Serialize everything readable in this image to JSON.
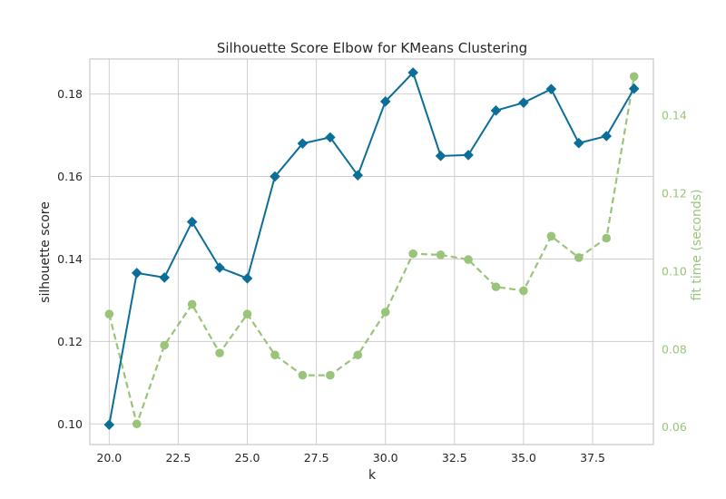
{
  "chart_data": {
    "type": "line",
    "title": "Silhouette Score Elbow for KMeans Clustering",
    "xlabel": "k",
    "ylabel": "silhouette score",
    "y2label": "fit time (seconds)",
    "xlim": [
      19.3,
      39.7
    ],
    "ylim": [
      0.095,
      0.1885
    ],
    "y2lim": [
      0.0555,
      0.1545
    ],
    "xticks": [
      20.0,
      22.5,
      25.0,
      27.5,
      30.0,
      32.5,
      35.0,
      37.5
    ],
    "xtick_labels": [
      "20.0",
      "22.5",
      "25.0",
      "27.5",
      "30.0",
      "32.5",
      "35.0",
      "37.5"
    ],
    "yticks": [
      0.1,
      0.12,
      0.14,
      0.16,
      0.18
    ],
    "ytick_labels": [
      "0.10",
      "0.12",
      "0.14",
      "0.16",
      "0.18"
    ],
    "y2ticks": [
      0.06,
      0.08,
      0.1,
      0.12,
      0.14
    ],
    "y2tick_labels": [
      "0.06",
      "0.08",
      "0.10",
      "0.12",
      "0.14"
    ],
    "grid": true,
    "x": [
      20,
      21,
      22,
      23,
      24,
      25,
      26,
      27,
      28,
      29,
      30,
      31,
      32,
      33,
      34,
      35,
      36,
      37,
      38,
      39
    ],
    "series": [
      {
        "name": "silhouette score",
        "axis": "left",
        "color": "#0b6e99",
        "marker": "diamond",
        "values": [
          0.0998,
          0.1366,
          0.1355,
          0.149,
          0.1379,
          0.1353,
          0.16,
          0.168,
          0.1695,
          0.1603,
          0.1782,
          0.1852,
          0.165,
          0.1652,
          0.176,
          0.1779,
          0.1812,
          0.1681,
          0.1698,
          0.1813
        ]
      },
      {
        "name": "fit time (seconds)",
        "axis": "right",
        "color": "#9ac47a",
        "marker": "circle",
        "dashed": true,
        "values": [
          0.089,
          0.0608,
          0.081,
          0.0915,
          0.079,
          0.089,
          0.0785,
          0.0733,
          0.0733,
          0.0785,
          0.0895,
          0.1045,
          0.1042,
          0.103,
          0.096,
          0.095,
          0.109,
          0.1035,
          0.1085,
          0.15
        ]
      }
    ]
  }
}
